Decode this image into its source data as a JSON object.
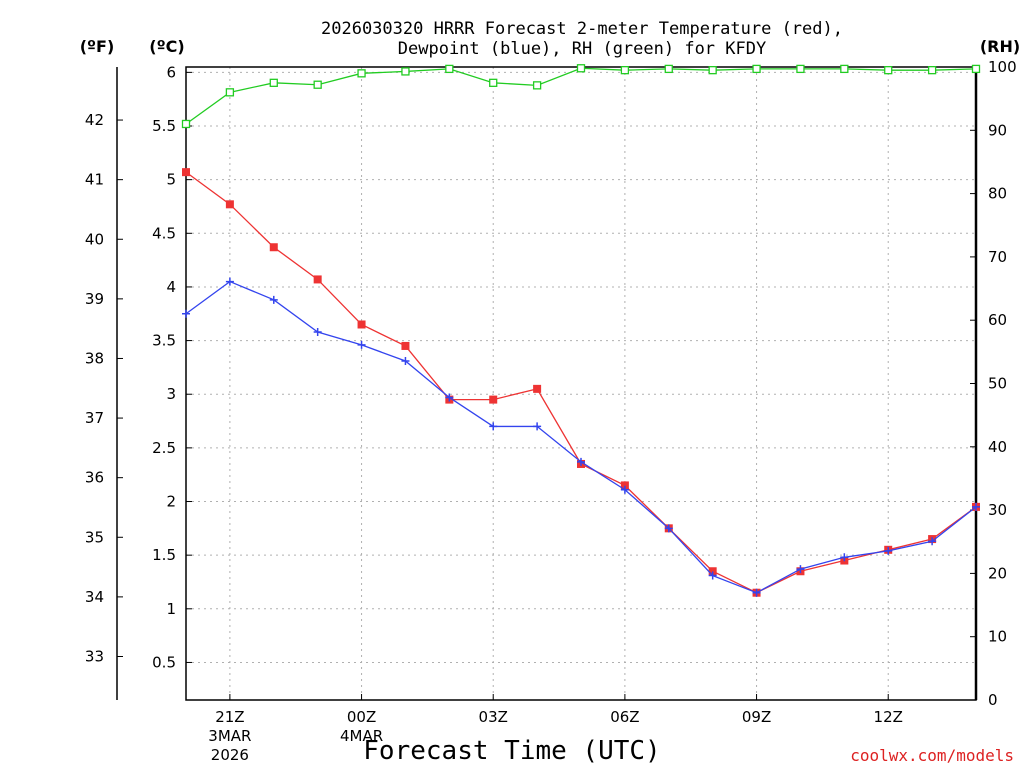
{
  "chart_data": {
    "type": "line",
    "title_line1": "2026030320 HRRR Forecast 2-meter Temperature (red),",
    "title_line2": "Dewpoint (blue), RH (green) for KFDY",
    "unit_f": "(ºF)",
    "unit_c": "(ºC)",
    "unit_rh": "(RH)",
    "xlabel": "Forecast Time (UTC)",
    "credit": "coolwx.com/models",
    "x": [
      0,
      1,
      2,
      3,
      4,
      5,
      6,
      7,
      8,
      9,
      10,
      11,
      12,
      13,
      14,
      15,
      16,
      17,
      18
    ],
    "x_ticks": [
      {
        "x": 1,
        "label": "21Z",
        "date": "3MAR",
        "year": "2026"
      },
      {
        "x": 4,
        "label": "00Z",
        "date": "4MAR",
        "year": ""
      },
      {
        "x": 7,
        "label": "03Z",
        "date": "",
        "year": ""
      },
      {
        "x": 10,
        "label": "06Z",
        "date": "",
        "year": ""
      },
      {
        "x": 13,
        "label": "09Z",
        "date": "",
        "year": ""
      },
      {
        "x": 16,
        "label": "12Z",
        "date": "",
        "year": ""
      }
    ],
    "xlim": [
      0,
      18
    ],
    "ylim_c": [
      0.15,
      6.05
    ],
    "yticks_c": [
      "0.5",
      "1",
      "1.5",
      "2",
      "2.5",
      "3",
      "3.5",
      "4",
      "4.5",
      "5",
      "5.5",
      "6"
    ],
    "yticks_f": [
      "33",
      "34",
      "35",
      "36",
      "37",
      "38",
      "39",
      "40",
      "41",
      "42"
    ],
    "ylim_rh": [
      0,
      100
    ],
    "yticks_rh": [
      "0",
      "10",
      "20",
      "30",
      "40",
      "50",
      "60",
      "70",
      "80",
      "90",
      "100"
    ],
    "colors": {
      "temp": "#ee3333",
      "dew": "#3344ee",
      "rh": "#22cc22",
      "credit": "#dd2222"
    },
    "series": [
      {
        "name": "Temperature (C)",
        "values": [
          5.07,
          4.77,
          4.37,
          4.07,
          3.65,
          3.45,
          2.95,
          2.95,
          3.05,
          2.35,
          2.15,
          1.75,
          1.35,
          1.15,
          1.35,
          1.45,
          1.55,
          1.65,
          1.95
        ]
      },
      {
        "name": "Dewpoint (C)",
        "values": [
          3.75,
          4.05,
          3.88,
          3.58,
          3.46,
          3.31,
          2.97,
          2.7,
          2.7,
          2.37,
          2.11,
          1.75,
          1.31,
          1.15,
          1.37,
          1.48,
          1.54,
          1.63,
          1.95
        ]
      },
      {
        "name": "RH (%)",
        "values": [
          91,
          96,
          97.5,
          97.2,
          99,
          99.3,
          99.7,
          97.5,
          97.1,
          99.8,
          99.5,
          99.7,
          99.5,
          99.7,
          99.7,
          99.7,
          99.5,
          99.5,
          99.7
        ]
      }
    ]
  }
}
